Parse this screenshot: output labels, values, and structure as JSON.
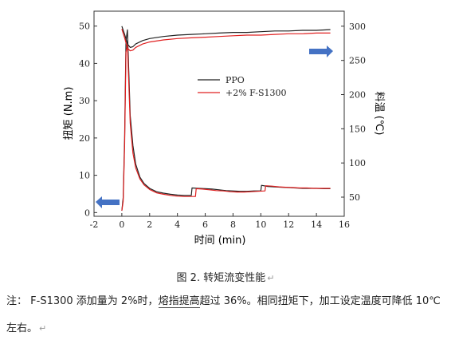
{
  "figure": {
    "caption": "图 2. 转矩流变性能",
    "paragraph_mark": "↵"
  },
  "note": {
    "label": "注：",
    "text_part1": "F-S1300 添加量为 2%时，",
    "text_underlined": "熔指提高",
    "text_part2": "超过 36%。相同扭矩下，加工设定温度可降低 10℃",
    "line2": "左右。"
  },
  "chart_data": {
    "type": "line",
    "xlabel": "时间 (min)",
    "ylabel": "扭矩 (N.m)",
    "y2label": "料温 (℃)",
    "xlim": [
      -2,
      16
    ],
    "ylim": [
      -1,
      54
    ],
    "y2lim": [
      22,
      322
    ],
    "xticks": [
      -2,
      0,
      2,
      4,
      6,
      8,
      10,
      12,
      14,
      16
    ],
    "yticks": [
      0,
      10,
      20,
      30,
      40,
      50
    ],
    "y2ticks": [
      50,
      100,
      150,
      200,
      250,
      300
    ],
    "legend_position": "center-right",
    "arrows": [
      {
        "direction": "left",
        "color": "#4472c4",
        "axis": "left"
      },
      {
        "direction": "right",
        "color": "#4472c4",
        "axis": "right"
      }
    ],
    "series": [
      {
        "name": "PPO",
        "color": "#222222",
        "axis": "left",
        "role": "torque",
        "x": [
          0.0,
          0.1,
          0.2,
          0.3,
          0.4,
          0.5,
          0.6,
          0.8,
          1.0,
          1.3,
          1.6,
          2.0,
          2.5,
          3.0,
          3.5,
          4.0,
          4.5,
          5.0,
          5.05,
          5.5,
          6.0,
          6.5,
          7.0,
          7.5,
          8.0,
          8.5,
          9.0,
          9.5,
          10.0,
          10.05,
          10.5,
          11.0,
          11.5,
          12.0,
          12.5,
          13.0,
          13.5,
          14.0,
          14.5,
          15.0
        ],
        "y": [
          0.5,
          4,
          20,
          46,
          49,
          38,
          26,
          18,
          13,
          9.5,
          7.8,
          6.5,
          5.6,
          5.2,
          4.9,
          4.7,
          4.6,
          4.6,
          6.6,
          6.5,
          6.4,
          6.3,
          6.1,
          5.9,
          5.8,
          5.7,
          5.7,
          5.8,
          5.8,
          7.3,
          7.0,
          6.9,
          6.8,
          6.7,
          6.6,
          6.5,
          6.5,
          6.5,
          6.4,
          6.4
        ]
      },
      {
        "name": "+2% F-S1300",
        "color": "#e02020",
        "axis": "left",
        "role": "torque",
        "x": [
          0.0,
          0.1,
          0.2,
          0.3,
          0.4,
          0.5,
          0.6,
          0.8,
          1.0,
          1.3,
          1.6,
          2.0,
          2.5,
          3.0,
          3.5,
          4.0,
          4.5,
          5.0,
          5.3,
          5.35,
          5.8,
          6.3,
          6.8,
          7.3,
          7.8,
          8.3,
          8.8,
          9.3,
          9.8,
          10.3,
          10.35,
          10.8,
          11.3,
          11.8,
          12.3,
          12.8,
          13.3,
          13.8,
          14.3,
          15.0
        ],
        "y": [
          0.5,
          3,
          18,
          43,
          45,
          35,
          24,
          16,
          12,
          9,
          7.4,
          6.2,
          5.3,
          4.9,
          4.6,
          4.4,
          4.3,
          4.3,
          4.3,
          6.4,
          6.3,
          6.1,
          5.9,
          5.8,
          5.6,
          5.5,
          5.5,
          5.6,
          5.7,
          5.8,
          7.2,
          7.1,
          6.9,
          6.8,
          6.7,
          6.6,
          6.6,
          6.5,
          6.5,
          6.5
        ]
      },
      {
        "name": "",
        "color": "#222222",
        "axis": "right",
        "role": "temperature",
        "x": [
          0.0,
          0.2,
          0.4,
          0.6,
          0.8,
          1.0,
          1.5,
          2.0,
          3.0,
          4.0,
          5.0,
          6.0,
          7.0,
          8.0,
          9.0,
          10.0,
          11.0,
          12.0,
          13.0,
          14.0,
          15.0
        ],
        "y": [
          300,
          288,
          274,
          269,
          270,
          274,
          279,
          282,
          285,
          287,
          288,
          289,
          290,
          291,
          291,
          292,
          293,
          293,
          294,
          294,
          295
        ]
      },
      {
        "name": "",
        "color": "#e02020",
        "axis": "right",
        "role": "temperature",
        "x": [
          0.0,
          0.2,
          0.4,
          0.6,
          0.8,
          1.0,
          1.5,
          2.0,
          3.0,
          4.0,
          5.0,
          6.0,
          7.0,
          8.0,
          9.0,
          10.0,
          11.0,
          12.0,
          13.0,
          14.0,
          15.0
        ],
        "y": [
          296,
          283,
          268,
          264,
          265,
          269,
          274,
          277,
          280,
          282,
          283,
          284,
          285,
          286,
          287,
          287,
          288,
          289,
          289,
          290,
          290
        ]
      }
    ]
  }
}
